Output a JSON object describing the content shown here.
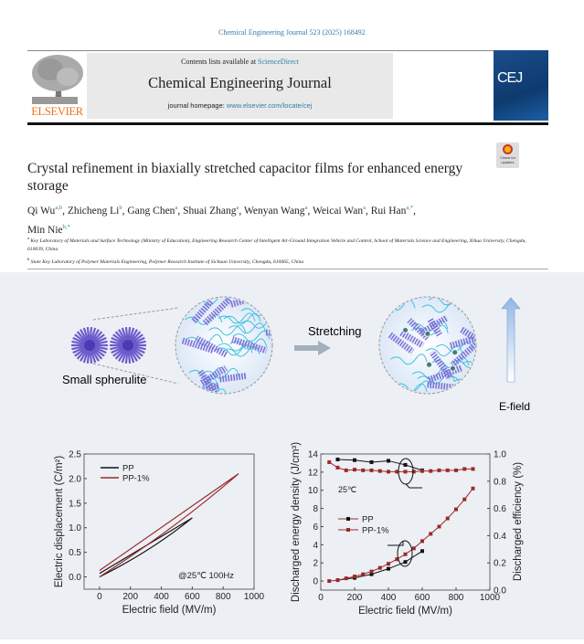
{
  "header": {
    "citation": "Chemical Engineering Journal 523 (2025) 168492",
    "contents_prefix": "Contents lists available at ",
    "contents_link": "ScienceDirect",
    "journal_title": "Chemical Engineering Journal",
    "homepage_prefix": "journal homepage: ",
    "homepage_link": "www.elsevier.com/locate/cej",
    "publisher_logo": "ELSEVIER",
    "cover_logo": "CEJ",
    "check_updates": "Check for updates"
  },
  "article": {
    "title": "Crystal refinement in biaxially stretched capacitor films for enhanced energy storage",
    "authors": [
      {
        "name": "Qi Wu",
        "sup": "a,b"
      },
      {
        "name": "Zhicheng Li",
        "sup": "b"
      },
      {
        "name": "Gang Chen",
        "sup": "a"
      },
      {
        "name": "Shuai Zhang",
        "sup": "a"
      },
      {
        "name": "Wenyan Wang",
        "sup": "a"
      },
      {
        "name": "Weicai Wan",
        "sup": "a"
      },
      {
        "name": "Rui Han",
        "sup": "a,*"
      },
      {
        "name": "Min Nie",
        "sup": "b,*"
      }
    ],
    "affiliations": [
      {
        "sup": "a",
        "text": "Key Laboratory of Materials and Surface Technology (Ministry of Education), Engineering Research Center of Intelligent Air-Ground Integration Vehicle and Control, School of Materials Science and Engineering, Xihua University, Chengdu, 610039, China"
      },
      {
        "sup": "b",
        "text": "State Key Laboratory of Polymer Materials Engineering, Polymer Research Institute of Sichuan University, Chengdu, 610065, China"
      }
    ]
  },
  "graphical_abstract": {
    "label_spherulite": "Small spherulite",
    "label_stretching": "Stretching",
    "label_efield": "E-field",
    "colors": {
      "background": "#eceff4",
      "lamella": "#7b6fd6",
      "chain": "#3fc0e0",
      "pp": "#111111",
      "pp1": "#9b2a2a"
    }
  },
  "chart_data": [
    {
      "type": "line",
      "xlabel": "Electric field (MV/m)",
      "ylabel": "Electric displacement (C/m²)",
      "xlim": [
        -100,
        1000
      ],
      "ylim": [
        -0.25,
        2.5
      ],
      "xticks": [
        "0",
        "200",
        "400",
        "600",
        "800",
        "1000"
      ],
      "yticks": [
        "0.0",
        "0.5",
        "1.0",
        "1.5",
        "2.0",
        "2.5"
      ],
      "annotation": "@25℃ 100Hz",
      "legend_position": "top-left",
      "series": [
        {
          "name": "PP",
          "color": "#111111",
          "x": [
            0,
            600,
            0
          ],
          "y": [
            0,
            1.2,
            0.07
          ]
        },
        {
          "name": "PP-1%",
          "color": "#9b2a2a",
          "x": [
            0,
            900,
            0
          ],
          "y": [
            0,
            2.1,
            0.13
          ]
        }
      ]
    },
    {
      "type": "line",
      "xlabel": "Electric field (MV/m)",
      "ylabel": "Discharged energy density (J/cm³)",
      "ylabel_right": "Discharged efficiency (%)",
      "xlim": [
        0,
        1000
      ],
      "ylim": [
        -1,
        14
      ],
      "ylim_right": [
        0,
        1.0
      ],
      "xticks": [
        "0",
        "200",
        "400",
        "600",
        "800",
        "1000"
      ],
      "yticks": [
        "0",
        "2",
        "4",
        "6",
        "8",
        "10",
        "12",
        "14"
      ],
      "yticks_right": [
        "0.0",
        "0.2",
        "0.4",
        "0.6",
        "0.8",
        "1.0"
      ],
      "annotation": "25℃",
      "legend_position": "left",
      "series": [
        {
          "name": "PP",
          "axis": "left",
          "color": "#111111",
          "x": [
            100,
            200,
            300,
            400,
            500,
            600
          ],
          "y": [
            0.1,
            0.35,
            0.75,
            1.35,
            2.1,
            3.3
          ]
        },
        {
          "name": "PP-1%",
          "axis": "left",
          "color": "#9b2a2a",
          "x": [
            50,
            100,
            150,
            200,
            250,
            300,
            350,
            400,
            450,
            500,
            550,
            600,
            650,
            700,
            750,
            800,
            850,
            900
          ],
          "y": [
            0,
            0.1,
            0.3,
            0.5,
            0.75,
            1.05,
            1.45,
            1.9,
            2.4,
            2.95,
            3.6,
            4.4,
            5.2,
            6.0,
            6.9,
            7.9,
            9.0,
            10.2
          ]
        },
        {
          "name": "PP",
          "axis": "right",
          "color": "#111111",
          "x": [
            100,
            200,
            300,
            400,
            500,
            600
          ],
          "y": [
            0.96,
            0.955,
            0.94,
            0.95,
            0.92,
            0.88
          ]
        },
        {
          "name": "PP-1%",
          "axis": "right",
          "color": "#9b2a2a",
          "x": [
            50,
            100,
            150,
            200,
            250,
            300,
            350,
            400,
            450,
            500,
            550,
            600,
            650,
            700,
            750,
            800,
            850,
            900
          ],
          "y": [
            0.94,
            0.9,
            0.88,
            0.885,
            0.88,
            0.88,
            0.875,
            0.87,
            0.87,
            0.87,
            0.87,
            0.875,
            0.875,
            0.88,
            0.88,
            0.88,
            0.89,
            0.89
          ]
        }
      ]
    }
  ]
}
